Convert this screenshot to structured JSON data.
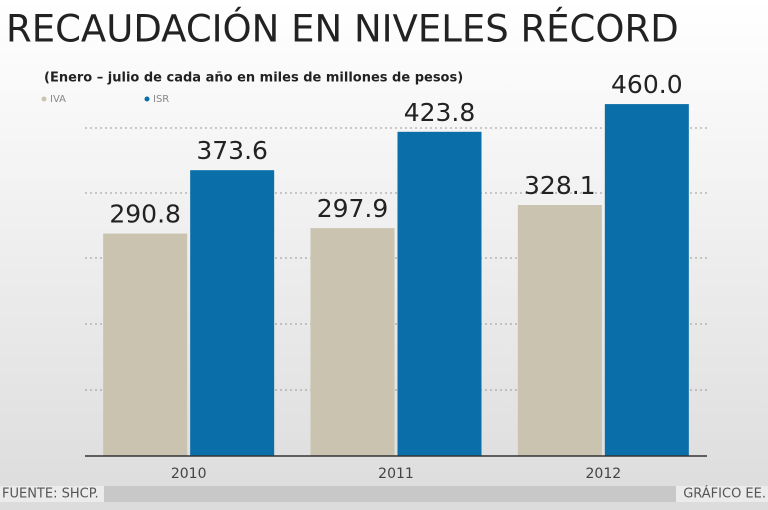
{
  "chart_data": {
    "type": "bar",
    "title": "RECAUDACIÓN EN NIVELES RÉCORD",
    "subtitle": "(Enero – julio de cada año en miles de millones de pesos)",
    "categories": [
      "2010",
      "2011",
      "2012"
    ],
    "series": [
      {
        "name": "IVA",
        "color": "#c9c3b0",
        "values": [
          290.8,
          297.9,
          328.1
        ],
        "value_labels": [
          "290.8",
          "297.9",
          "328.1"
        ]
      },
      {
        "name": "ISR",
        "color": "#0a6ea8",
        "values": [
          373.6,
          423.8,
          460.0
        ],
        "value_labels": [
          "373.6",
          "423.8",
          "460.0"
        ]
      }
    ],
    "ylim": [
      0,
      500
    ],
    "source": "FUENTE: SHCP.",
    "credit": "GRÁFICO EE."
  }
}
